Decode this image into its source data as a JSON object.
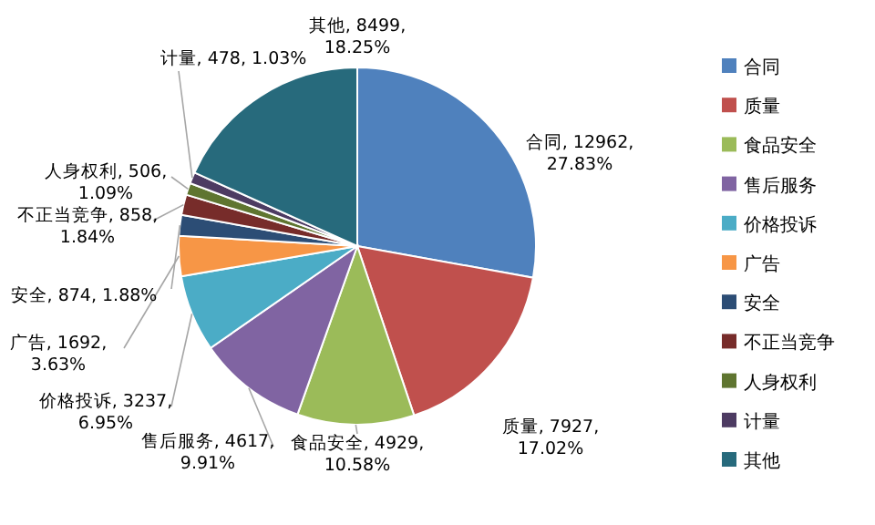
{
  "chart_data": {
    "type": "pie",
    "categories": [
      "合同",
      "质量",
      "食品安全",
      "售后服务",
      "价格投诉",
      "广告",
      "安全",
      "不正当竞争",
      "人身权利",
      "计量",
      "其他"
    ],
    "values": [
      12962,
      7927,
      4929,
      4617,
      3237,
      1692,
      874,
      858,
      506,
      478,
      8499
    ],
    "colors": [
      "#4f81bd",
      "#c0504d",
      "#9bbb59",
      "#8064a2",
      "#4bacc6",
      "#f79646",
      "#2c4d75",
      "#772c2a",
      "#5f7530",
      "#4d3b62",
      "#276a7c"
    ],
    "value_labels": [
      "合同, 12962, 27.83%",
      "质量, 7927, 17.02%",
      "食品安全, 4929, 10.58%",
      "售后服务, 4617, 9.91%",
      "价格投诉, 3237, 6.95%",
      "广告, 1692, 3.63%",
      "安全, 874, 1.88%",
      "不正当竞争, 858, 1.84%",
      "人身权利, 506, 1.09%",
      "计量, 478, 1.03%",
      "其他, 8499, 18.25%"
    ],
    "legend": "right"
  }
}
